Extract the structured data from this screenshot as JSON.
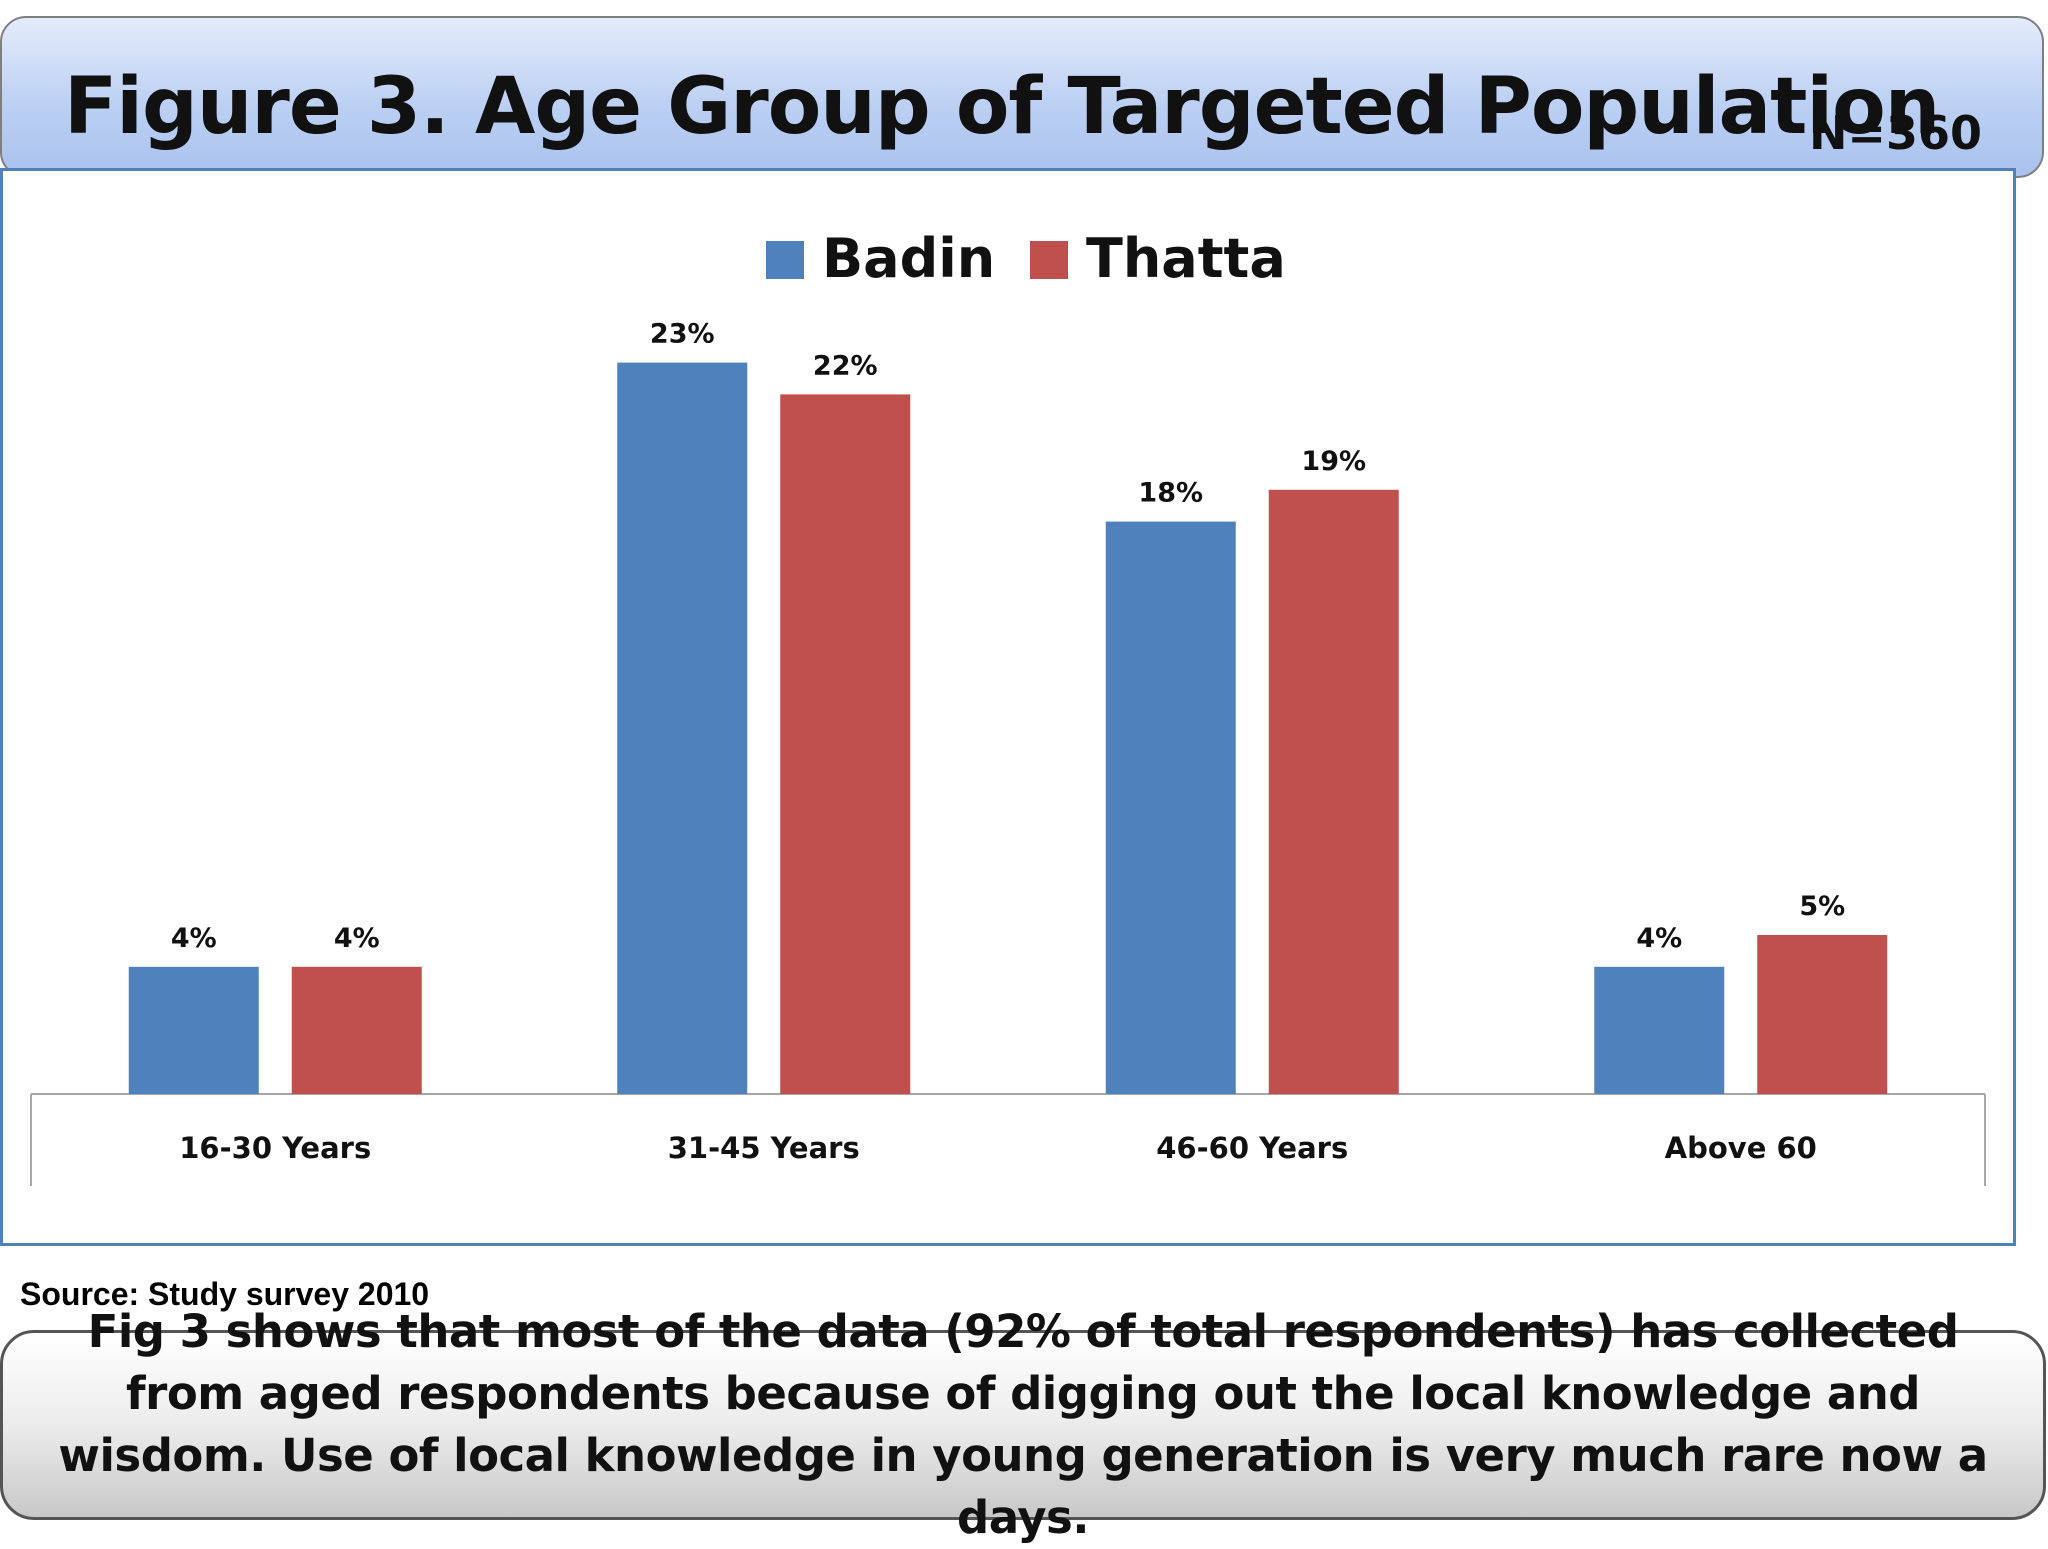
{
  "header": {
    "title": "Figure 3. Age Group of Targeted Population",
    "sample_size": "N=360"
  },
  "chart_data": {
    "type": "bar",
    "categories": [
      "16-30 Years",
      "31-45 Years",
      "46-60 Years",
      "Above 60"
    ],
    "series": [
      {
        "name": "Badin",
        "color": "#4f81bd",
        "values": [
          4,
          23,
          18,
          4
        ],
        "labels": [
          "4%",
          "23%",
          "18%",
          "4%"
        ]
      },
      {
        "name": "Thatta",
        "color": "#c0504d",
        "values": [
          4,
          22,
          19,
          5
        ],
        "labels": [
          "4%",
          "22%",
          "19%",
          "5%"
        ]
      }
    ],
    "ylim": [
      0,
      25
    ],
    "grid": false,
    "legend": "top-center",
    "value_labels": true
  },
  "footer": {
    "source": "Source: Study survey 2010",
    "caption": "Fig 3 shows that most of the data (92% of total respondents) has collected from aged respondents  because of digging out the local knowledge and wisdom. Use of local knowledge in young generation is very much rare now a days."
  }
}
